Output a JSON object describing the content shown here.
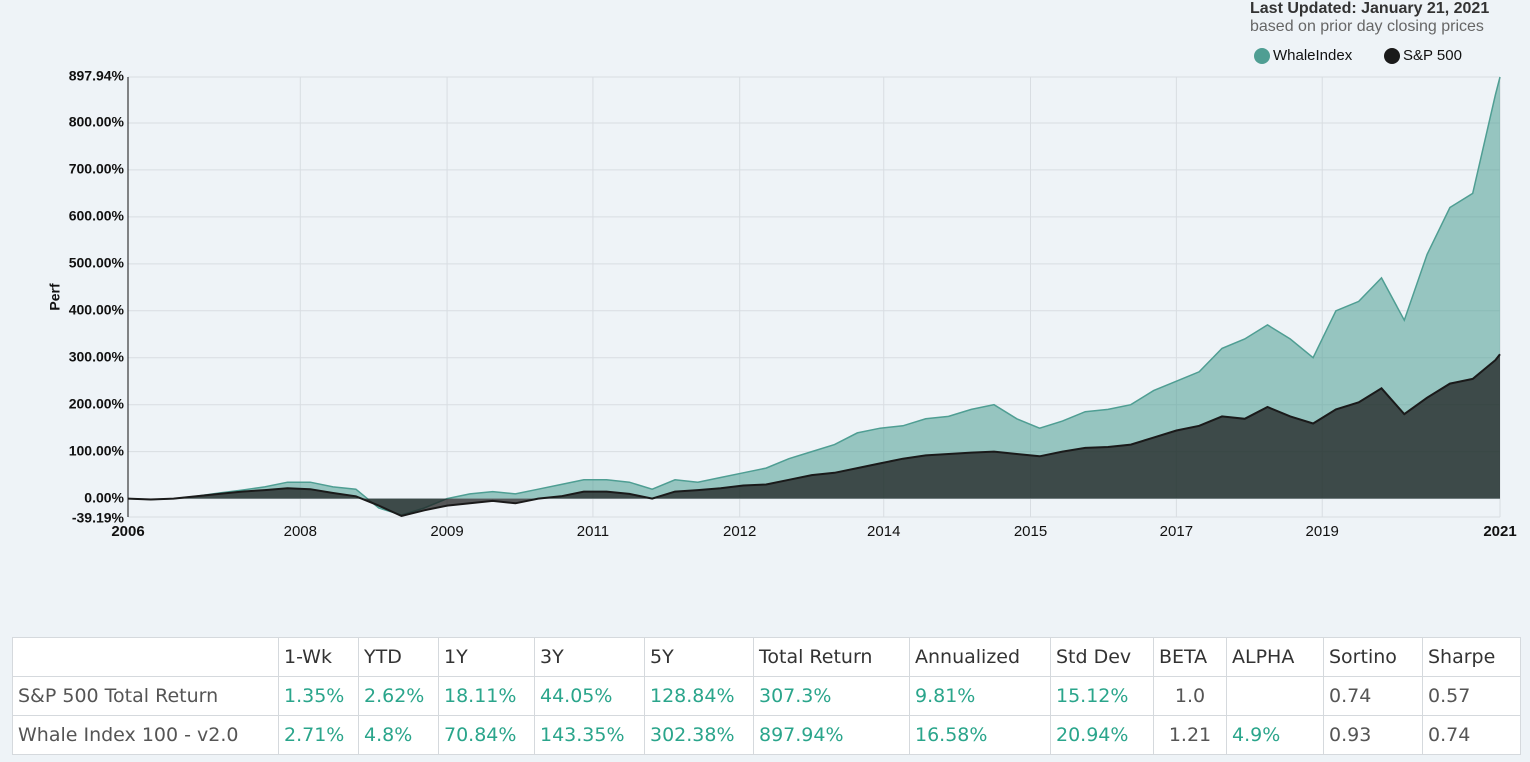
{
  "header": {
    "updated": "Last Updated: January 21, 2021",
    "note": "based on prior day closing prices"
  },
  "chart_data": {
    "type": "area",
    "y_label": "Perf",
    "legend": "top-right",
    "grid": true,
    "xlim": [
      2006,
      2021.05
    ],
    "xticks": [
      {
        "value": 2006,
        "label": "2006"
      },
      {
        "value": 2007.89,
        "label": "2008"
      },
      {
        "value": 2009.5,
        "label": "2009"
      },
      {
        "value": 2011.1,
        "label": "2011"
      },
      {
        "value": 2012.71,
        "label": "2012"
      },
      {
        "value": 2014.29,
        "label": "2014"
      },
      {
        "value": 2015.9,
        "label": "2015"
      },
      {
        "value": 2017.5,
        "label": "2017"
      },
      {
        "value": 2019.1,
        "label": "2019"
      },
      {
        "value": 2021.05,
        "label": "2021"
      }
    ],
    "ylim": [
      -39.19,
      897.94
    ],
    "yticks": [
      {
        "value": -39.19,
        "label": "-39.19%"
      },
      {
        "value": 0,
        "label": "0.00%"
      },
      {
        "value": 100,
        "label": "100.00%"
      },
      {
        "value": 200,
        "label": "200.00%"
      },
      {
        "value": 300,
        "label": "300.00%"
      },
      {
        "value": 400,
        "label": "400.00%"
      },
      {
        "value": 500,
        "label": "500.00%"
      },
      {
        "value": 600,
        "label": "600.00%"
      },
      {
        "value": 700,
        "label": "700.00%"
      },
      {
        "value": 800,
        "label": "800.00%"
      },
      {
        "value": 897.94,
        "label": "897.94%"
      }
    ],
    "x": [
      2006,
      2006.25,
      2006.5,
      2006.75,
      2007,
      2007.25,
      2007.5,
      2007.75,
      2008,
      2008.25,
      2008.5,
      2008.75,
      2009,
      2009.25,
      2009.5,
      2009.75,
      2010,
      2010.25,
      2010.5,
      2010.75,
      2011,
      2011.25,
      2011.5,
      2011.75,
      2012,
      2012.25,
      2012.5,
      2012.75,
      2013,
      2013.25,
      2013.5,
      2013.75,
      2014,
      2014.25,
      2014.5,
      2014.75,
      2015,
      2015.25,
      2015.5,
      2015.75,
      2016,
      2016.25,
      2016.5,
      2016.75,
      2017,
      2017.25,
      2017.5,
      2017.75,
      2018,
      2018.25,
      2018.5,
      2018.75,
      2019,
      2019.25,
      2019.5,
      2019.75,
      2020,
      2020.25,
      2020.5,
      2020.75,
      2021,
      2021.05
    ],
    "series": [
      {
        "name": "WhaleIndex",
        "color": "#4f9e93",
        "values": [
          0,
          -2,
          0,
          5,
          12,
          18,
          25,
          35,
          35,
          25,
          20,
          -20,
          -35,
          -20,
          0,
          10,
          15,
          10,
          20,
          30,
          40,
          40,
          35,
          20,
          40,
          35,
          45,
          55,
          65,
          85,
          100,
          115,
          140,
          150,
          155,
          170,
          175,
          190,
          200,
          170,
          150,
          165,
          185,
          190,
          200,
          230,
          250,
          270,
          320,
          340,
          370,
          340,
          300,
          400,
          420,
          470,
          380,
          520,
          620,
          650,
          860,
          897.94
        ]
      },
      {
        "name": "S&P 500",
        "color": "#1a1a1a",
        "values": [
          0,
          -2,
          0,
          5,
          10,
          15,
          18,
          22,
          20,
          12,
          5,
          -15,
          -37,
          -25,
          -15,
          -10,
          -5,
          -10,
          0,
          5,
          15,
          15,
          10,
          0,
          15,
          18,
          22,
          28,
          30,
          40,
          50,
          55,
          65,
          75,
          85,
          92,
          95,
          98,
          100,
          95,
          90,
          100,
          108,
          110,
          115,
          130,
          145,
          155,
          175,
          170,
          195,
          175,
          160,
          190,
          205,
          235,
          180,
          215,
          245,
          255,
          295,
          307.3
        ]
      }
    ]
  },
  "table": {
    "headers": [
      "1-Wk",
      "YTD",
      "1Y",
      "3Y",
      "5Y",
      "Total Return",
      "Annualized",
      "Std Dev",
      "BETA",
      "ALPHA",
      "Sortino",
      "Sharpe"
    ],
    "rows": [
      [
        "S&P 500 Total Return",
        "1.35%",
        "2.62%",
        "18.11%",
        "44.05%",
        "128.84%",
        "307.3%",
        "9.81%",
        "15.12%",
        "1.0",
        null,
        "0.74",
        "0.57"
      ],
      [
        "Whale Index 100 - v2.0",
        "2.71%",
        "4.8%",
        "70.84%",
        "143.35%",
        "302.38%",
        "897.94%",
        "16.58%",
        "20.94%",
        "1.21",
        "4.9%",
        "0.93",
        "0.74"
      ]
    ]
  }
}
